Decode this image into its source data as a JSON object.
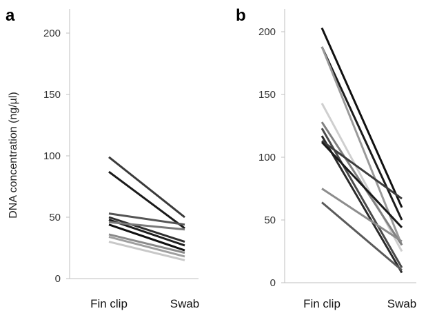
{
  "ylabel": "DNA concentration (ng/µl)",
  "chart_data": [
    {
      "panel_label": "a",
      "type": "line",
      "categories": [
        "Fin clip",
        "Swab"
      ],
      "yticks": [
        0,
        50,
        100,
        150,
        200
      ],
      "ylim": [
        0,
        215
      ],
      "series": [
        {
          "values": [
            99,
            50
          ],
          "color": "#3a3a3a"
        },
        {
          "values": [
            87,
            41
          ],
          "color": "#1a1a1a"
        },
        {
          "values": [
            53,
            44
          ],
          "color": "#555555"
        },
        {
          "values": [
            50,
            30
          ],
          "color": "#2e2e2e"
        },
        {
          "values": [
            48,
            27
          ],
          "color": "#1e1e1e"
        },
        {
          "values": [
            46,
            40
          ],
          "color": "#7a7a7a"
        },
        {
          "values": [
            44,
            23
          ],
          "color": "#101010"
        },
        {
          "values": [
            36,
            21
          ],
          "color": "#8a8a8a"
        },
        {
          "values": [
            34,
            18
          ],
          "color": "#a0a0a0"
        },
        {
          "values": [
            30,
            15
          ],
          "color": "#c8c8c8"
        }
      ]
    },
    {
      "panel_label": "b",
      "type": "line",
      "categories": [
        "Fin clip",
        "Swab"
      ],
      "yticks": [
        0,
        50,
        100,
        150,
        200
      ],
      "ylim": [
        0,
        215
      ],
      "series": [
        {
          "values": [
            203,
            60
          ],
          "color": "#111111"
        },
        {
          "values": [
            188,
            50
          ],
          "color": "#1c1c1c"
        },
        {
          "values": [
            188,
            30
          ],
          "color": "#9a9a9a"
        },
        {
          "values": [
            143,
            25
          ],
          "color": "#cfcfcf"
        },
        {
          "values": [
            128,
            30
          ],
          "color": "#808080"
        },
        {
          "values": [
            123,
            12
          ],
          "color": "#4a4a4a"
        },
        {
          "values": [
            117,
            8
          ],
          "color": "#2a2a2a"
        },
        {
          "values": [
            113,
            67
          ],
          "color": "#3c3c3c"
        },
        {
          "values": [
            112,
            44
          ],
          "color": "#1a1a1a"
        },
        {
          "values": [
            75,
            33
          ],
          "color": "#8c8c8c"
        },
        {
          "values": [
            64,
            10
          ],
          "color": "#5a5a5a"
        }
      ]
    }
  ]
}
